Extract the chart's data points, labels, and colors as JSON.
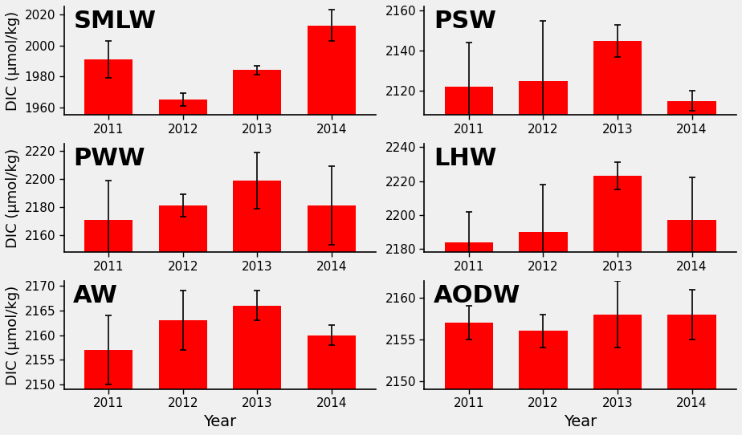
{
  "subplots": [
    {
      "label": "SMLW",
      "years": [
        2011,
        2012,
        2013,
        2014
      ],
      "values": [
        1991,
        1965,
        1984,
        2013
      ],
      "errors": [
        12,
        4,
        3,
        10
      ],
      "ylim": [
        1955,
        2025
      ],
      "yticks": [
        1960,
        1980,
        2000,
        2020
      ]
    },
    {
      "label": "PSW",
      "years": [
        2011,
        2012,
        2013,
        2014
      ],
      "values": [
        2122,
        2125,
        2145,
        2115
      ],
      "errors": [
        22,
        30,
        8,
        5
      ],
      "ylim": [
        2108,
        2162
      ],
      "yticks": [
        2120,
        2140,
        2160
      ]
    },
    {
      "label": "PWW",
      "years": [
        2011,
        2012,
        2013,
        2014
      ],
      "values": [
        2171,
        2181,
        2199,
        2181
      ],
      "errors": [
        28,
        8,
        20,
        28
      ],
      "ylim": [
        2148,
        2225
      ],
      "yticks": [
        2160,
        2180,
        2200,
        2220
      ]
    },
    {
      "label": "LHW",
      "years": [
        2011,
        2012,
        2013,
        2014
      ],
      "values": [
        2184,
        2190,
        2223,
        2197
      ],
      "errors": [
        18,
        28,
        8,
        25
      ],
      "ylim": [
        2178,
        2242
      ],
      "yticks": [
        2180,
        2200,
        2220,
        2240
      ]
    },
    {
      "label": "AW",
      "years": [
        2011,
        2012,
        2013,
        2014
      ],
      "values": [
        2157,
        2163,
        2166,
        2160
      ],
      "errors": [
        7,
        6,
        3,
        2
      ],
      "ylim": [
        2149,
        2171
      ],
      "yticks": [
        2150,
        2155,
        2160,
        2165,
        2170
      ]
    },
    {
      "label": "AODW",
      "years": [
        2011,
        2012,
        2013,
        2014
      ],
      "values": [
        2157,
        2156,
        2158,
        2158
      ],
      "errors": [
        2,
        2,
        4,
        3
      ],
      "ylim": [
        2149,
        2162
      ],
      "yticks": [
        2150,
        2155,
        2160
      ]
    }
  ],
  "bar_color": "#ff0000",
  "bar_width": 0.65,
  "xlabel": "Year",
  "ylabel": "DIC (μmol/kg)",
  "ylabel_fontsize": 13,
  "xlabel_fontsize": 14,
  "tick_fontsize": 11,
  "title_fontsize": 22,
  "fig_bg_color": "#f0f0f0"
}
